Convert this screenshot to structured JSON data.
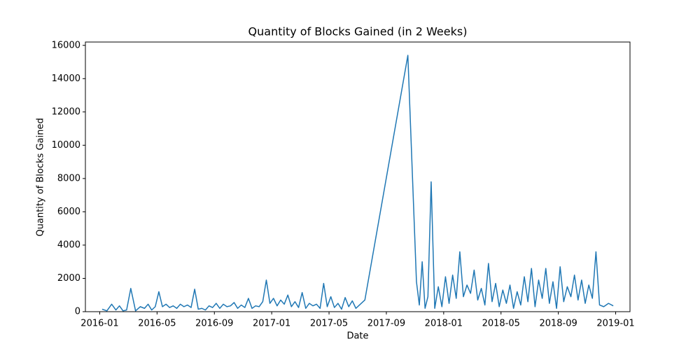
{
  "chart_data": {
    "type": "line",
    "title": "Quantity of Blocks Gained (in 2 Weeks)",
    "x_label": "Date",
    "y_label": "Quantity of Blocks Gained",
    "color": "#1f77b4",
    "x": [
      "2016-01",
      "2016-01",
      "2016-01",
      "2016-02",
      "2016-02",
      "2016-02",
      "2016-02",
      "2016-03",
      "2016-03",
      "2016-03",
      "2016-04",
      "2016-04",
      "2016-04",
      "2016-04",
      "2016-05",
      "2016-05",
      "2016-05",
      "2016-05",
      "2016-06",
      "2016-06",
      "2016-06",
      "2016-06",
      "2016-07",
      "2016-07",
      "2016-07",
      "2016-07",
      "2016-08",
      "2016-08",
      "2016-08",
      "2016-08",
      "2016-09",
      "2016-09",
      "2016-09",
      "2016-09",
      "2016-10",
      "2016-10",
      "2016-10",
      "2016-10",
      "2016-11",
      "2016-11",
      "2016-11",
      "2016-11",
      "2016-12",
      "2016-12",
      "2016-12",
      "2016-12",
      "2017-01",
      "2017-01",
      "2017-01",
      "2017-01",
      "2017-02",
      "2017-02",
      "2017-02",
      "2017-02",
      "2017-03",
      "2017-03",
      "2017-03",
      "2017-03",
      "2017-04",
      "2017-04",
      "2017-04",
      "2017-04",
      "2017-05",
      "2017-05",
      "2017-05",
      "2017-05",
      "2017-06",
      "2017-06",
      "2017-06",
      "2017-06",
      "2017-07",
      "2017-10",
      "2017-11",
      "2017-11",
      "2017-11",
      "2017-11",
      "2017-11",
      "2017-12",
      "2017-12",
      "2017-12",
      "2017-12",
      "2018-01",
      "2018-01",
      "2018-01",
      "2018-01",
      "2018-02",
      "2018-02",
      "2018-02",
      "2018-02",
      "2018-03",
      "2018-03",
      "2018-03",
      "2018-03",
      "2018-04",
      "2018-04",
      "2018-04",
      "2018-04",
      "2018-05",
      "2018-05",
      "2018-05",
      "2018-05",
      "2018-06",
      "2018-06",
      "2018-06",
      "2018-06",
      "2018-07",
      "2018-07",
      "2018-07",
      "2018-07",
      "2018-08",
      "2018-08",
      "2018-08",
      "2018-08",
      "2018-09",
      "2018-09",
      "2018-09",
      "2018-09",
      "2018-10",
      "2018-10",
      "2018-10",
      "2018-10",
      "2018-11",
      "2018-11",
      "2018-11",
      "2018-11",
      "2018-12",
      "2018-12",
      "2018-12"
    ],
    "values": [
      150,
      50,
      450,
      100,
      350,
      50,
      100,
      1400,
      50,
      300,
      200,
      450,
      100,
      300,
      1200,
      300,
      450,
      250,
      350,
      200,
      450,
      300,
      400,
      250,
      1350,
      150,
      200,
      100,
      350,
      250,
      500,
      200,
      450,
      300,
      350,
      550,
      200,
      400,
      250,
      800,
      200,
      350,
      300,
      600,
      1900,
      500,
      800,
      350,
      700,
      450,
      1000,
      300,
      600,
      250,
      1150,
      200,
      500,
      350,
      450,
      200,
      1700,
      300,
      900,
      250,
      500,
      150,
      850,
      300,
      650,
      200,
      700,
      15400,
      1800,
      400,
      3000,
      200,
      900,
      7800,
      200,
      1500,
      300,
      2100,
      500,
      2200,
      800,
      3600,
      900,
      1600,
      1100,
      2500,
      700,
      1400,
      400,
      2900,
      600,
      1700,
      300,
      1300,
      500,
      1600,
      200,
      1200,
      400,
      2100,
      600,
      2600,
      300,
      1900,
      800,
      2600,
      500,
      1800,
      200,
      2700,
      600,
      1500,
      900,
      2200,
      700,
      1900,
      500,
      1600,
      800,
      3600,
      400,
      300,
      500,
      350
    ],
    "xlim": [
      "2015-12",
      "2019-02"
    ],
    "xticks": [
      "2016-01",
      "2016-05",
      "2016-09",
      "2017-01",
      "2017-05",
      "2017-09",
      "2018-01",
      "2018-05",
      "2018-09",
      "2019-01"
    ],
    "ylim": [
      0,
      16200
    ],
    "yticks": [
      0,
      2000,
      4000,
      6000,
      8000,
      10000,
      12000,
      14000,
      16000
    ]
  }
}
